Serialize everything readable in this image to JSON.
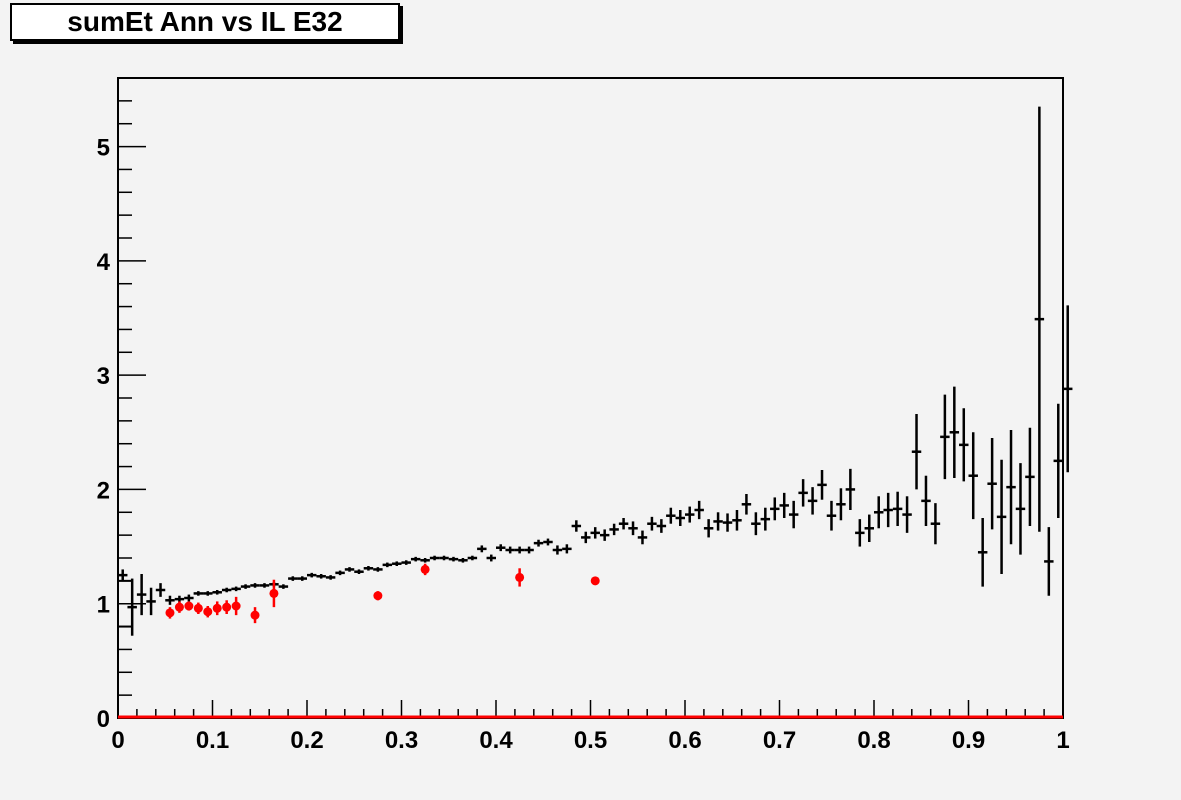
{
  "chart_data": {
    "type": "scatter",
    "title": "sumEt Ann vs IL E32",
    "xlim": [
      0,
      1
    ],
    "ylim": [
      0,
      5.6
    ],
    "xticks": [
      "0",
      "0.1",
      "0.2",
      "0.3",
      "0.4",
      "0.5",
      "0.6",
      "0.7",
      "0.8",
      "0.9",
      "1"
    ],
    "yticks": [
      "0",
      "1",
      "2",
      "3",
      "4",
      "5"
    ],
    "grid": false,
    "series": [
      {
        "color": "#000000",
        "marker": "cross",
        "points": [
          [
            0.005,
            1.25,
            0.05
          ],
          [
            0.015,
            0.97,
            0.25
          ],
          [
            0.025,
            1.08,
            0.18
          ],
          [
            0.035,
            1.02,
            0.12
          ],
          [
            0.045,
            1.12,
            0.06
          ],
          [
            0.055,
            1.03,
            0.04
          ],
          [
            0.065,
            1.04,
            0.03
          ],
          [
            0.075,
            1.05,
            0.03
          ],
          [
            0.085,
            1.09,
            0.02
          ],
          [
            0.095,
            1.09,
            0.02
          ],
          [
            0.105,
            1.1,
            0.02
          ],
          [
            0.115,
            1.12,
            0.02
          ],
          [
            0.125,
            1.13,
            0.02
          ],
          [
            0.135,
            1.15,
            0.02
          ],
          [
            0.145,
            1.16,
            0.02
          ],
          [
            0.155,
            1.16,
            0.02
          ],
          [
            0.165,
            1.17,
            0.02
          ],
          [
            0.175,
            1.15,
            0.02
          ],
          [
            0.185,
            1.22,
            0.02
          ],
          [
            0.195,
            1.22,
            0.02
          ],
          [
            0.205,
            1.25,
            0.02
          ],
          [
            0.215,
            1.24,
            0.02
          ],
          [
            0.225,
            1.23,
            0.02
          ],
          [
            0.235,
            1.27,
            0.02
          ],
          [
            0.245,
            1.3,
            0.02
          ],
          [
            0.255,
            1.28,
            0.02
          ],
          [
            0.265,
            1.31,
            0.02
          ],
          [
            0.275,
            1.3,
            0.02
          ],
          [
            0.285,
            1.34,
            0.02
          ],
          [
            0.295,
            1.35,
            0.02
          ],
          [
            0.305,
            1.36,
            0.02
          ],
          [
            0.315,
            1.39,
            0.02
          ],
          [
            0.325,
            1.38,
            0.02
          ],
          [
            0.335,
            1.4,
            0.02
          ],
          [
            0.345,
            1.4,
            0.02
          ],
          [
            0.355,
            1.39,
            0.02
          ],
          [
            0.365,
            1.38,
            0.02
          ],
          [
            0.375,
            1.4,
            0.02
          ],
          [
            0.385,
            1.48,
            0.03
          ],
          [
            0.395,
            1.4,
            0.03
          ],
          [
            0.405,
            1.49,
            0.03
          ],
          [
            0.415,
            1.47,
            0.03
          ],
          [
            0.425,
            1.47,
            0.03
          ],
          [
            0.435,
            1.47,
            0.03
          ],
          [
            0.445,
            1.53,
            0.03
          ],
          [
            0.455,
            1.54,
            0.03
          ],
          [
            0.465,
            1.47,
            0.04
          ],
          [
            0.475,
            1.48,
            0.04
          ],
          [
            0.485,
            1.68,
            0.05
          ],
          [
            0.495,
            1.58,
            0.05
          ],
          [
            0.505,
            1.62,
            0.05
          ],
          [
            0.515,
            1.6,
            0.05
          ],
          [
            0.525,
            1.65,
            0.05
          ],
          [
            0.535,
            1.7,
            0.05
          ],
          [
            0.545,
            1.66,
            0.06
          ],
          [
            0.555,
            1.58,
            0.06
          ],
          [
            0.565,
            1.7,
            0.06
          ],
          [
            0.575,
            1.68,
            0.06
          ],
          [
            0.585,
            1.77,
            0.07
          ],
          [
            0.595,
            1.75,
            0.07
          ],
          [
            0.605,
            1.78,
            0.07
          ],
          [
            0.615,
            1.82,
            0.08
          ],
          [
            0.625,
            1.66,
            0.08
          ],
          [
            0.635,
            1.72,
            0.08
          ],
          [
            0.645,
            1.71,
            0.08
          ],
          [
            0.655,
            1.73,
            0.09
          ],
          [
            0.665,
            1.87,
            0.09
          ],
          [
            0.675,
            1.7,
            0.1
          ],
          [
            0.685,
            1.74,
            0.1
          ],
          [
            0.695,
            1.83,
            0.1
          ],
          [
            0.705,
            1.86,
            0.11
          ],
          [
            0.715,
            1.78,
            0.12
          ],
          [
            0.725,
            1.97,
            0.12
          ],
          [
            0.735,
            1.9,
            0.12
          ],
          [
            0.745,
            2.04,
            0.13
          ],
          [
            0.755,
            1.77,
            0.13
          ],
          [
            0.765,
            1.87,
            0.14
          ],
          [
            0.775,
            2.0,
            0.18
          ],
          [
            0.785,
            1.62,
            0.12
          ],
          [
            0.795,
            1.66,
            0.12
          ],
          [
            0.805,
            1.8,
            0.14
          ],
          [
            0.815,
            1.82,
            0.15
          ],
          [
            0.825,
            1.83,
            0.15
          ],
          [
            0.835,
            1.78,
            0.16
          ],
          [
            0.845,
            2.33,
            0.33
          ],
          [
            0.855,
            1.9,
            0.22
          ],
          [
            0.865,
            1.7,
            0.18
          ],
          [
            0.875,
            2.46,
            0.37
          ],
          [
            0.885,
            2.5,
            0.4
          ],
          [
            0.895,
            2.39,
            0.32
          ],
          [
            0.905,
            2.12,
            0.38
          ],
          [
            0.915,
            1.45,
            0.3
          ],
          [
            0.925,
            2.05,
            0.4
          ],
          [
            0.935,
            1.76,
            0.5
          ],
          [
            0.945,
            2.02,
            0.5
          ],
          [
            0.955,
            1.83,
            0.4
          ],
          [
            0.965,
            2.11,
            0.43
          ],
          [
            0.975,
            3.49,
            1.86
          ],
          [
            0.985,
            1.37,
            0.3
          ],
          [
            0.995,
            2.25,
            0.5
          ],
          [
            1.005,
            2.88,
            0.73
          ]
        ]
      },
      {
        "color": "#ff0000",
        "marker": "dot",
        "points": [
          [
            0.055,
            0.92,
            0.05
          ],
          [
            0.065,
            0.97,
            0.05
          ],
          [
            0.075,
            0.98,
            0.04
          ],
          [
            0.085,
            0.96,
            0.05
          ],
          [
            0.095,
            0.93,
            0.05
          ],
          [
            0.105,
            0.96,
            0.06
          ],
          [
            0.115,
            0.97,
            0.06
          ],
          [
            0.125,
            0.98,
            0.08
          ],
          [
            0.145,
            0.9,
            0.07
          ],
          [
            0.165,
            1.09,
            0.12
          ],
          [
            0.275,
            1.07,
            0.04
          ],
          [
            0.325,
            1.3,
            0.05
          ],
          [
            0.425,
            1.23,
            0.08
          ],
          [
            0.505,
            1.2,
            0.03
          ]
        ]
      }
    ]
  }
}
